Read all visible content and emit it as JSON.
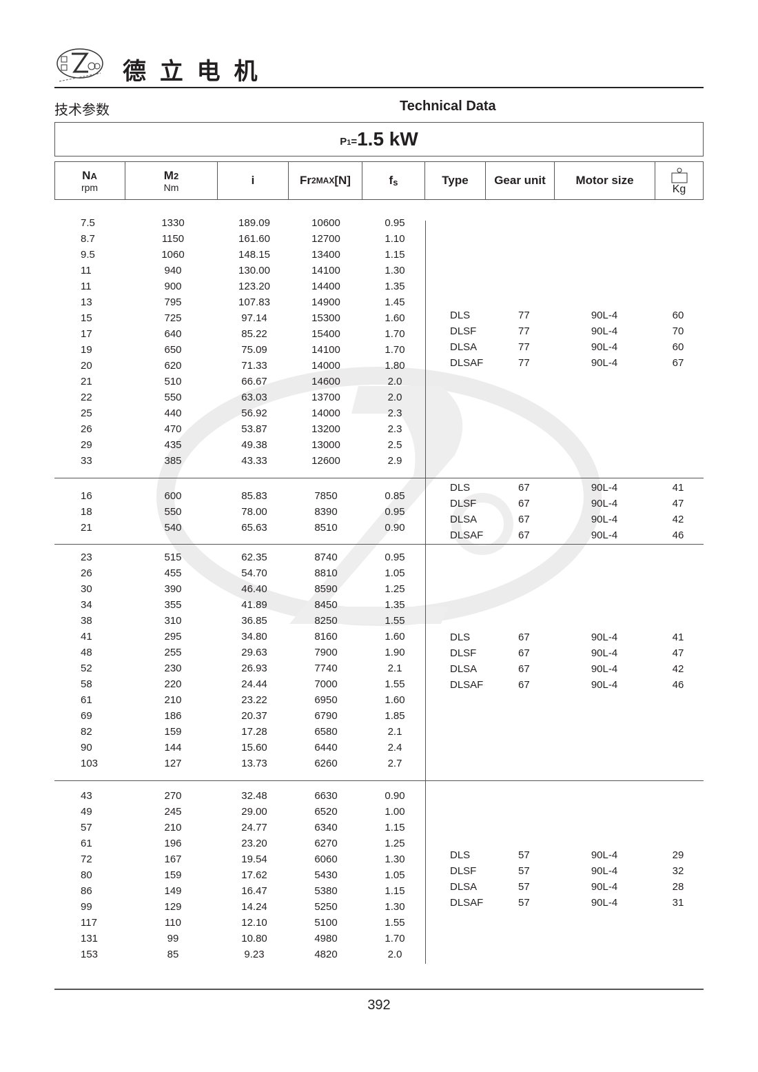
{
  "header": {
    "logo_text": "De Li Gear Motor",
    "logo_chars": "德立",
    "company_name": "德 立 电 机",
    "section_cn": "技术参数",
    "section_en": "Technical Data"
  },
  "power": {
    "label": "P",
    "sub": "1",
    "eq": "=",
    "value": "1.5 kW"
  },
  "columns": {
    "na": {
      "main": "N",
      "sub": "A",
      "unit": "rpm"
    },
    "m2": {
      "main": "M",
      "sub": "2",
      "unit": "Nm"
    },
    "i": {
      "main": "i"
    },
    "fr": {
      "main": "Fr",
      "sub": "2MAX",
      "tail": "[N]"
    },
    "fs": {
      "main": "f",
      "sub": "s"
    },
    "type": "Type",
    "gear_unit": "Gear unit",
    "motor_size": "Motor size",
    "kg": {
      "icon": "weight-icon",
      "unit": "Kg"
    }
  },
  "sections": [
    {
      "rows": [
        [
          "7.5",
          "1330",
          "189.09",
          "10600",
          "0.95"
        ],
        [
          "8.7",
          "1150",
          "161.60",
          "12700",
          "1.10"
        ],
        [
          "9.5",
          "1060",
          "148.15",
          "13400",
          "1.15"
        ],
        [
          "11",
          "940",
          "130.00",
          "14100",
          "1.30"
        ],
        [
          "11",
          "900",
          "123.20",
          "14400",
          "1.35"
        ],
        [
          "13",
          "795",
          "107.83",
          "14900",
          "1.45"
        ],
        [
          "15",
          "725",
          "97.14",
          "15300",
          "1.60"
        ],
        [
          "17",
          "640",
          "85.22",
          "15400",
          "1.70"
        ],
        [
          "19",
          "650",
          "75.09",
          "14100",
          "1.70"
        ],
        [
          "20",
          "620",
          "71.33",
          "14000",
          "1.80"
        ],
        [
          "21",
          "510",
          "66.67",
          "14600",
          "2.0"
        ],
        [
          "22",
          "550",
          "63.03",
          "13700",
          "2.0"
        ],
        [
          "25",
          "440",
          "56.92",
          "14000",
          "2.3"
        ],
        [
          "26",
          "470",
          "53.87",
          "13200",
          "2.3"
        ],
        [
          "29",
          "435",
          "49.38",
          "13000",
          "2.5"
        ],
        [
          "33",
          "385",
          "43.33",
          "12600",
          "2.9"
        ]
      ],
      "variants": [
        [
          "DLS",
          "77",
          "90L-4",
          "60"
        ],
        [
          "DLSF",
          "77",
          "90L-4",
          "70"
        ],
        [
          "DLSA",
          "77",
          "90L-4",
          "60"
        ],
        [
          "DLSAF",
          "77",
          "90L-4",
          "67"
        ]
      ]
    },
    {
      "rows": [
        [
          "16",
          "600",
          "85.83",
          "7850",
          "0.85"
        ],
        [
          "18",
          "550",
          "78.00",
          "8390",
          "0.95"
        ],
        [
          "21",
          "540",
          "65.63",
          "8510",
          "0.90"
        ]
      ],
      "variants": [
        [
          "DLS",
          "67",
          "90L-4",
          "41"
        ],
        [
          "DLSF",
          "67",
          "90L-4",
          "47"
        ],
        [
          "DLSA",
          "67",
          "90L-4",
          "42"
        ],
        [
          "DLSAF",
          "67",
          "90L-4",
          "46"
        ]
      ]
    },
    {
      "rows": [
        [
          "23",
          "515",
          "62.35",
          "8740",
          "0.95"
        ],
        [
          "26",
          "455",
          "54.70",
          "8810",
          "1.05"
        ],
        [
          "30",
          "390",
          "46.40",
          "8590",
          "1.25"
        ],
        [
          "34",
          "355",
          "41.89",
          "8450",
          "1.35"
        ],
        [
          "38",
          "310",
          "36.85",
          "8250",
          "1.55"
        ],
        [
          "41",
          "295",
          "34.80",
          "8160",
          "1.60"
        ],
        [
          "48",
          "255",
          "29.63",
          "7900",
          "1.90"
        ],
        [
          "52",
          "230",
          "26.93",
          "7740",
          "2.1"
        ],
        [
          "58",
          "220",
          "24.44",
          "7000",
          "1.55"
        ],
        [
          "61",
          "210",
          "23.22",
          "6950",
          "1.60"
        ],
        [
          "69",
          "186",
          "20.37",
          "6790",
          "1.85"
        ],
        [
          "82",
          "159",
          "17.28",
          "6580",
          "2.1"
        ],
        [
          "90",
          "144",
          "15.60",
          "6440",
          "2.4"
        ],
        [
          "103",
          "127",
          "13.73",
          "6260",
          "2.7"
        ]
      ],
      "variants": [
        [
          "DLS",
          "67",
          "90L-4",
          "41"
        ],
        [
          "DLSF",
          "67",
          "90L-4",
          "47"
        ],
        [
          "DLSA",
          "67",
          "90L-4",
          "42"
        ],
        [
          "DLSAF",
          "67",
          "90L-4",
          "46"
        ]
      ]
    },
    {
      "rows": [
        [
          "43",
          "270",
          "32.48",
          "6630",
          "0.90"
        ],
        [
          "49",
          "245",
          "29.00",
          "6520",
          "1.00"
        ],
        [
          "57",
          "210",
          "24.77",
          "6340",
          "1.15"
        ],
        [
          "61",
          "196",
          "23.20",
          "6270",
          "1.25"
        ],
        [
          "72",
          "167",
          "19.54",
          "6060",
          "1.30"
        ],
        [
          "80",
          "159",
          "17.62",
          "5430",
          "1.05"
        ],
        [
          "86",
          "149",
          "16.47",
          "5380",
          "1.15"
        ],
        [
          "99",
          "129",
          "14.24",
          "5250",
          "1.30"
        ],
        [
          "117",
          "110",
          "12.10",
          "5100",
          "1.55"
        ],
        [
          "131",
          "99",
          "10.80",
          "4980",
          "1.70"
        ],
        [
          "153",
          "85",
          "9.23",
          "4820",
          "2.0"
        ]
      ],
      "variants": [
        [
          "DLS",
          "57",
          "90L-4",
          "29"
        ],
        [
          "DLSF",
          "57",
          "90L-4",
          "32"
        ],
        [
          "DLSA",
          "57",
          "90L-4",
          "28"
        ],
        [
          "DLSAF",
          "57",
          "90L-4",
          "31"
        ]
      ]
    }
  ],
  "footer": {
    "page_number": "392"
  }
}
